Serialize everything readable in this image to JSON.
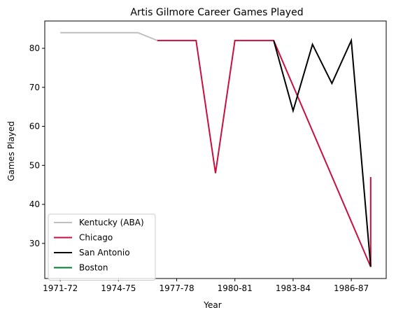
{
  "chart_data": {
    "type": "line",
    "title": "Artis Gilmore Career Games Played",
    "xlabel": "Year",
    "ylabel": "Games Played",
    "x_tick_labels": [
      "1971-72",
      "1974-75",
      "1977-78",
      "1980-81",
      "1983-84",
      "1986-87"
    ],
    "x_tick_values": [
      0,
      3,
      6,
      9,
      12,
      15
    ],
    "xlim": [
      -0.8,
      16.8
    ],
    "ylim": [
      21,
      87
    ],
    "y_ticks": [
      30,
      40,
      50,
      60,
      70,
      80
    ],
    "grid": false,
    "legend_position": "lower-left",
    "series": [
      {
        "name": "Kentucky (ABA)",
        "color": "#bfbfbf",
        "points": [
          [
            0,
            84
          ],
          [
            1,
            84
          ],
          [
            2,
            84
          ],
          [
            3,
            84
          ],
          [
            4,
            84
          ],
          [
            5,
            82
          ]
        ]
      },
      {
        "name": "Chicago",
        "color": "#c8103e",
        "points": [
          [
            5,
            82
          ],
          [
            6,
            82
          ],
          [
            7,
            82
          ],
          [
            8,
            48
          ],
          [
            9,
            82
          ],
          [
            10,
            82
          ],
          [
            11,
            82
          ],
          [
            16,
            24
          ],
          [
            16,
            47
          ]
        ]
      },
      {
        "name": "San Antonio",
        "color": "#000000",
        "points": [
          [
            11,
            82
          ],
          [
            12,
            64
          ],
          [
            13,
            81
          ],
          [
            14,
            71
          ],
          [
            15,
            82
          ],
          [
            16,
            24
          ]
        ]
      },
      {
        "name": "Boston",
        "color": "#007a33",
        "points": [
          [
            16,
            47
          ]
        ]
      }
    ]
  }
}
